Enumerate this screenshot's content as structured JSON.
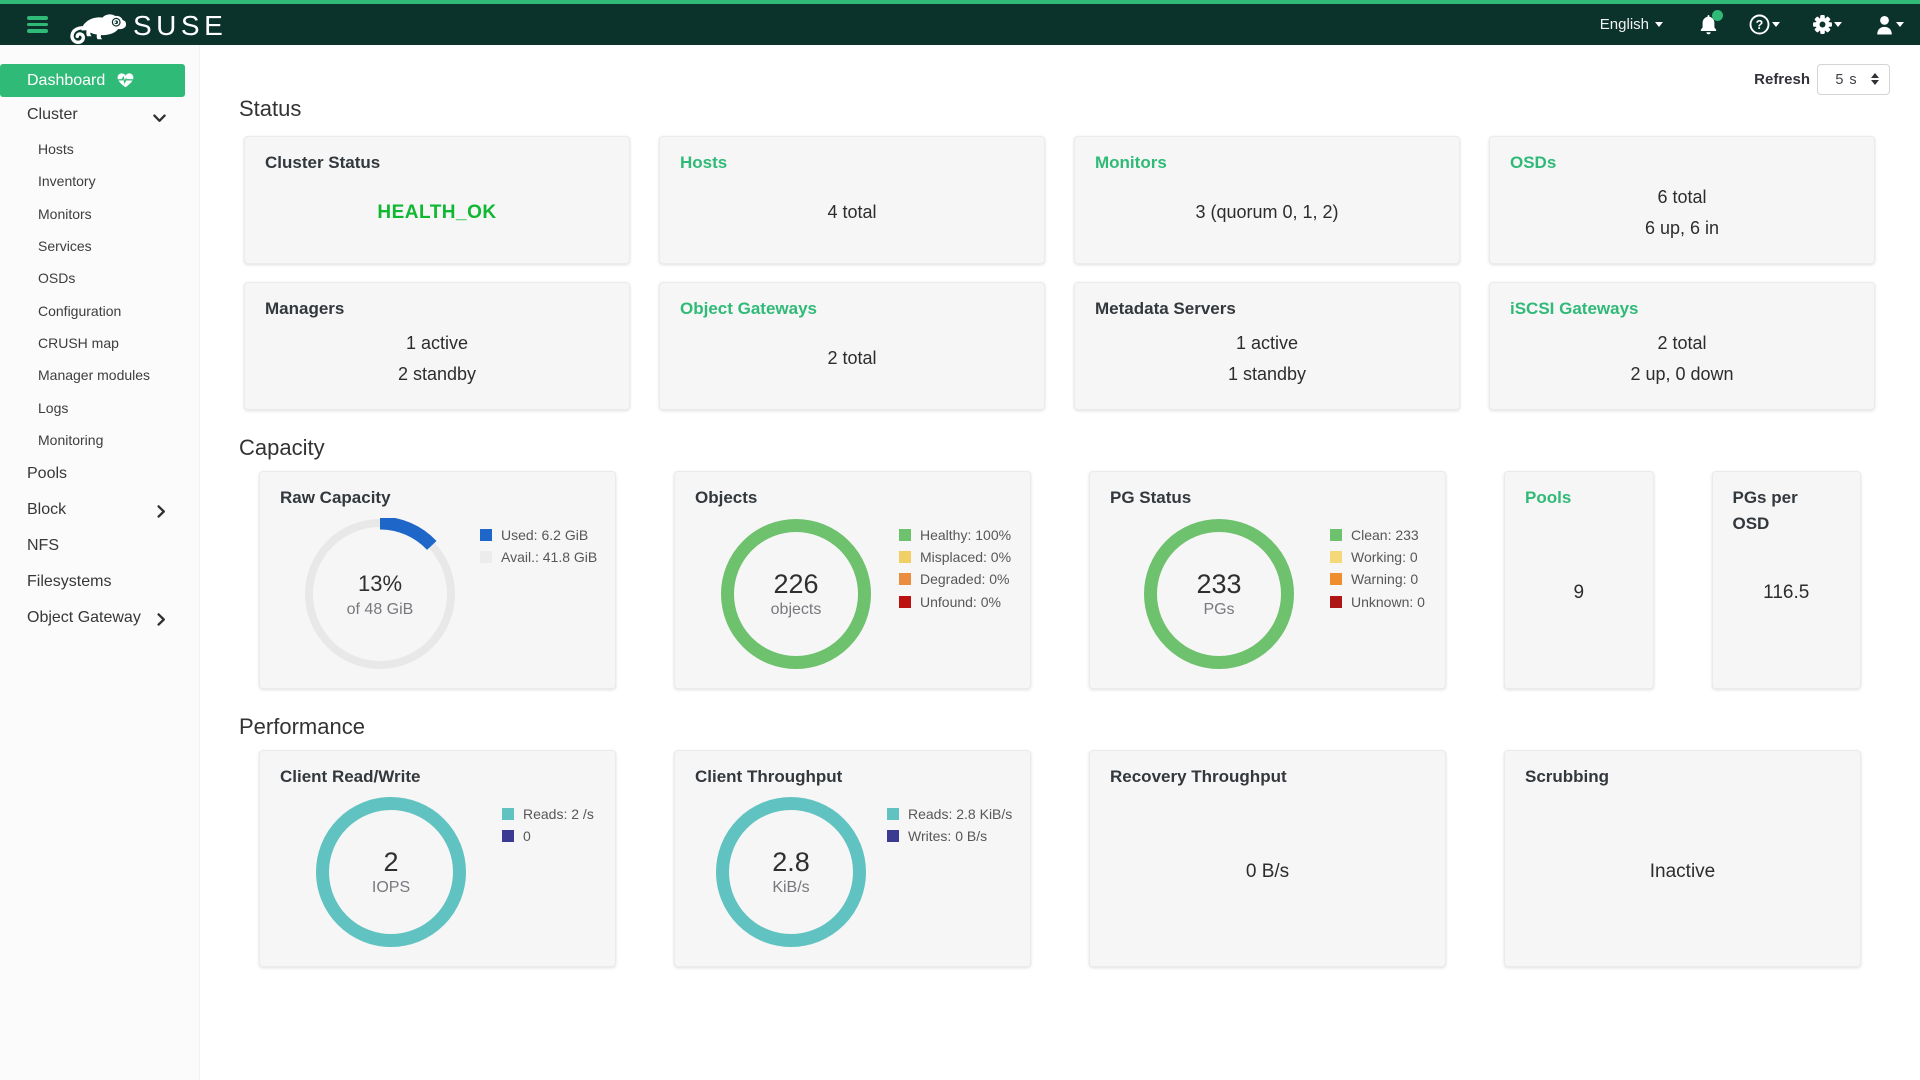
{
  "navbar": {
    "brand": "SUSE",
    "language": "English",
    "icons": [
      "bell-icon",
      "help-icon",
      "gear-icon",
      "user-icon"
    ],
    "accent_color": "#30ba78",
    "background_color": "#0c322c"
  },
  "sidebar": {
    "active": {
      "label": "Dashboard",
      "icon": "heartbeat-icon"
    },
    "items": [
      {
        "label": "Cluster",
        "state": "expanded",
        "children": [
          "Hosts",
          "Inventory",
          "Monitors",
          "Services",
          "OSDs",
          "Configuration",
          "CRUSH map",
          "Manager modules",
          "Logs",
          "Monitoring"
        ]
      },
      {
        "label": "Pools"
      },
      {
        "label": "Block",
        "state": "collapsed"
      },
      {
        "label": "NFS"
      },
      {
        "label": "Filesystems"
      },
      {
        "label": "Object Gateway",
        "state": "collapsed"
      }
    ]
  },
  "toolbar": {
    "refresh_label": "Refresh",
    "refresh_value": "5 s"
  },
  "status": {
    "heading": "Status",
    "cards": [
      {
        "title": "Cluster Status",
        "link": false,
        "lines": [
          "HEALTH_OK"
        ],
        "health": true
      },
      {
        "title": "Hosts",
        "link": true,
        "lines": [
          "4 total"
        ]
      },
      {
        "title": "Monitors",
        "link": true,
        "lines": [
          "3 (quorum 0, 1, 2)"
        ]
      },
      {
        "title": "OSDs",
        "link": true,
        "lines": [
          "6 total",
          "6 up, 6 in"
        ]
      },
      {
        "title": "Managers",
        "link": false,
        "lines": [
          "1 active",
          "2 standby"
        ]
      },
      {
        "title": "Object Gateways",
        "link": true,
        "lines": [
          "2 total"
        ]
      },
      {
        "title": "Metadata Servers",
        "link": false,
        "lines": [
          "1 active",
          "1 standby"
        ]
      },
      {
        "title": "iSCSI Gateways",
        "link": true,
        "lines": [
          "2 total",
          "2 up, 0 down"
        ]
      }
    ]
  },
  "capacity": {
    "heading": "Capacity",
    "cards": [
      {
        "type": "donut",
        "title": "Raw Capacity",
        "link": false,
        "donut": {
          "percent": 13,
          "radius": 71,
          "arc_color": "#1e67c9",
          "arc_width": 13,
          "track_color": "#e8e8e8",
          "track_width": 8,
          "center_value": "13%",
          "center_value_size": 22,
          "center_sub": "of 48 GiB"
        },
        "legend": [
          {
            "color": "#1e67c9",
            "label": "Used: 6.2 GiB"
          },
          {
            "color": "#ececec",
            "label": "Avail.: 41.8 GiB"
          }
        ]
      },
      {
        "type": "donut",
        "title": "Objects",
        "link": false,
        "donut": {
          "percent": 100,
          "radius": 68.5,
          "arc_color": "#6ec16d",
          "arc_width": 13,
          "track_color": "#6ec16d",
          "track_width": 13,
          "center_value": "226",
          "center_value_size": 27,
          "center_sub": "objects"
        },
        "legend": [
          {
            "color": "#6ec16d",
            "label": "Healthy: 100%"
          },
          {
            "color": "#f0d064",
            "label": "Misplaced: 0%"
          },
          {
            "color": "#e98d3e",
            "label": "Degraded: 0%"
          },
          {
            "color": "#bc1111",
            "label": "Unfound: 0%"
          }
        ]
      },
      {
        "type": "donut",
        "title": "PG Status",
        "link": false,
        "donut": {
          "percent": 100,
          "radius": 68.5,
          "arc_color": "#6ec16d",
          "arc_width": 13,
          "track_color": "#6ec16d",
          "track_width": 13,
          "center_value": "233",
          "center_value_size": 27,
          "center_sub": "PGs"
        },
        "legend": [
          {
            "color": "#6ec16d",
            "label": "Clean: 233"
          },
          {
            "color": "#f5d878",
            "label": "Working: 0"
          },
          {
            "color": "#ef8e2e",
            "label": "Warning: 0"
          },
          {
            "color": "#ae1616",
            "label": "Unknown: 0"
          }
        ]
      },
      {
        "type": "split",
        "cards": [
          {
            "title": "Pools",
            "link": true,
            "value": "9"
          },
          {
            "title": "PGs per OSD",
            "link": false,
            "value": "116.5"
          }
        ]
      }
    ]
  },
  "performance": {
    "heading": "Performance",
    "cards": [
      {
        "type": "donut",
        "title": "Client Read/Write",
        "link": false,
        "donut": {
          "percent": 100,
          "radius": 68.5,
          "arc_color": "#60c3c1",
          "arc_width": 13,
          "track_color": "#60c3c1",
          "track_width": 13,
          "center_value": "2",
          "center_value_size": 27,
          "center_sub": "IOPS"
        },
        "legend": [
          {
            "color": "#60c3c1",
            "label": "Reads: 2 /s"
          },
          {
            "color": "#3c3b92",
            "label": "0"
          }
        ]
      },
      {
        "type": "donut",
        "title": "Client Throughput",
        "link": false,
        "donut": {
          "percent": 100,
          "radius": 68.5,
          "arc_color": "#60c3c1",
          "arc_width": 13,
          "track_color": "#60c3c1",
          "track_width": 13,
          "center_value": "2.8",
          "center_value_size": 27,
          "center_sub": "KiB/s"
        },
        "legend": [
          {
            "color": "#60c3c1",
            "label": "Reads: 2.8 KiB/s"
          },
          {
            "color": "#3c3b92",
            "label": "Writes: 0 B/s"
          }
        ]
      },
      {
        "type": "value",
        "title": "Recovery Throughput",
        "link": false,
        "value": "0 B/s"
      },
      {
        "type": "value",
        "title": "Scrubbing",
        "link": false,
        "value": "Inactive"
      }
    ]
  }
}
